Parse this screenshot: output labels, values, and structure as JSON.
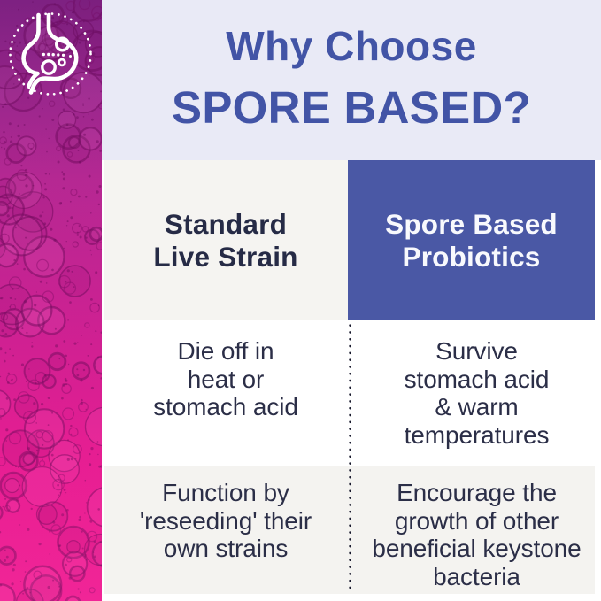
{
  "header": {
    "title_line1": "Why Choose",
    "title_line2": "SPORE BASED?"
  },
  "table": {
    "columns": [
      {
        "header": "Standard\nLive Strain"
      },
      {
        "header": "Spore Based\nProbiotics"
      }
    ],
    "rows": [
      {
        "standard": "Die off in\nheat or\nstomach acid",
        "spore": "Survive\nstomach acid\n& warm\ntemperatures"
      },
      {
        "standard": "Function by\n'reseeding' their\nown strains",
        "spore": "Encourage the\ngrowth of other\nbeneficial keystone\nbacteria"
      }
    ]
  },
  "icons": {
    "stomach": "stomach-icon",
    "dotted_ring": "dotted-ring-icon"
  },
  "colors": {
    "title_blue": "#4254a6",
    "hero_bg": "#e9eaf6",
    "spore_header_bg": "#4a58a5",
    "spore_header_text": "#f8f9fd",
    "standard_header_bg": "#f5f4f1",
    "row_alt_bg": "#f4f3f0",
    "dark_text": "#262b46",
    "body_text": "#2b2e47",
    "strip_pink": "#d9218f"
  }
}
